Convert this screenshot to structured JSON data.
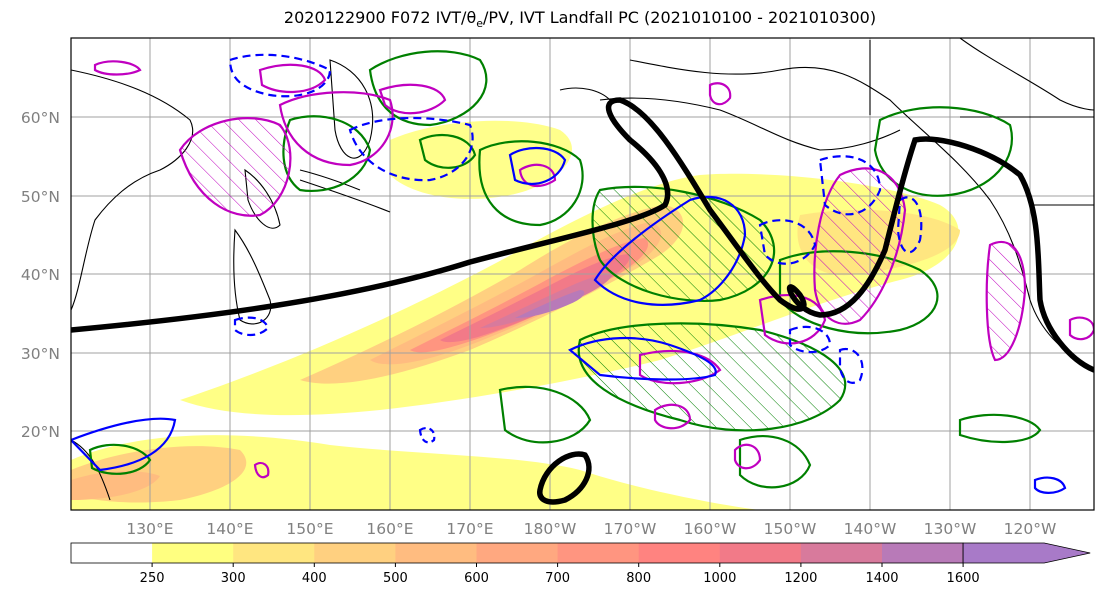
{
  "title": "2020122900 F072 IVT/θe/PV, IVT Landfall PC (2021010100 - 2021010300)",
  "title_parts": {
    "before": "2020122900 F072 IVT/",
    "theta": "θ",
    "theta_sub": "e",
    "after": "/PV, IVT Landfall PC (2021010100 - 2021010300)"
  },
  "latitude_labels": [
    "60°N",
    "50°N",
    "40°N",
    "30°N",
    "20°N"
  ],
  "longitude_labels": [
    "130°E",
    "140°E",
    "150°E",
    "160°E",
    "170°E",
    "180°W",
    "170°W",
    "160°W",
    "150°W",
    "140°W",
    "130°W",
    "120°W"
  ],
  "colorbar": {
    "ticks": [
      "250",
      "300",
      "400",
      "500",
      "600",
      "700",
      "800",
      "1000",
      "1200",
      "1400",
      "1600"
    ],
    "colors": [
      "#ffffff",
      "#ffff80",
      "#ffe680",
      "#ffd080",
      "#ffbc80",
      "#ffa880",
      "#ff9580",
      "#ff8380",
      "#f27a88",
      "#d87a9c",
      "#b87ab8",
      "#a87ac8"
    ]
  },
  "colors": {
    "ivt_low": "#ffff80",
    "ivt_high": "#a87ac8",
    "theta_e_contour": "#008000",
    "pv_contour": "#0000ff",
    "magenta_contour": "#c000c0",
    "landfall_pc": "#000000",
    "grid": "#a0a0a0",
    "coast": "#000000"
  }
}
